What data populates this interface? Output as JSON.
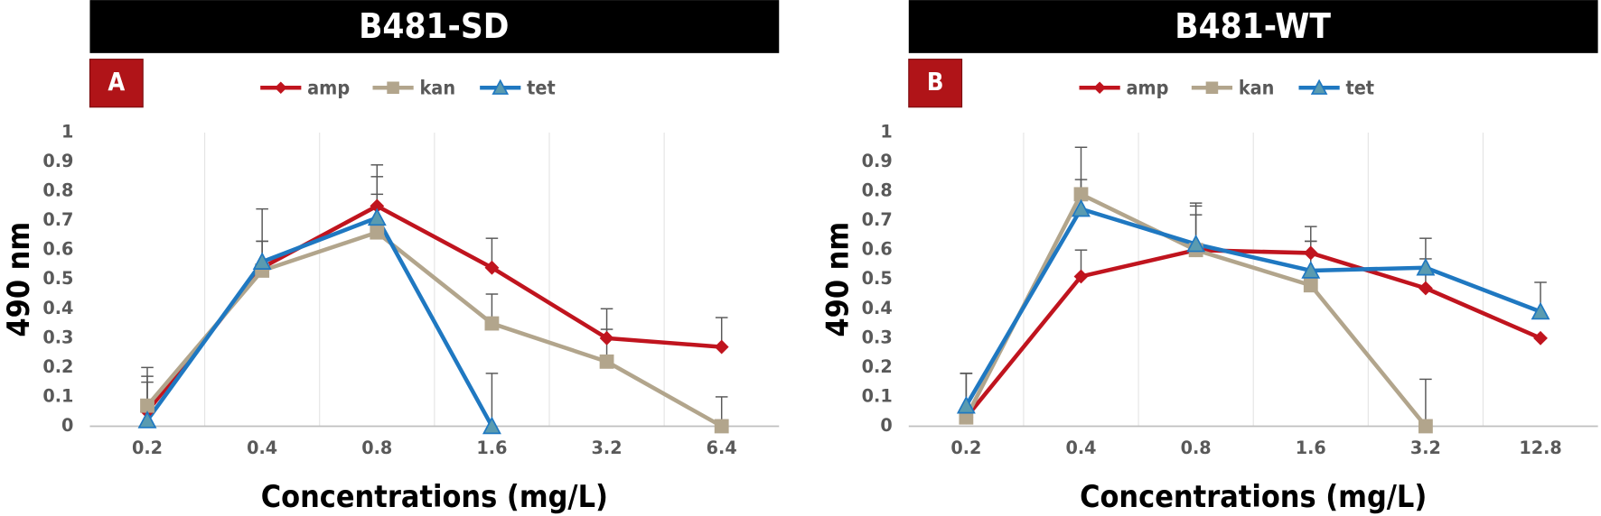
{
  "chart_data": [
    {
      "type": "line",
      "title": "B481-SD",
      "panel": "A",
      "xlabel": "Concentrations (mg/L)",
      "ylabel": "490 nm",
      "categories": [
        "0.2",
        "0.4",
        "0.8",
        "1.6",
        "3.2",
        "6.4"
      ],
      "series": [
        {
          "name": "amp",
          "color": "#c0141e",
          "marker": "diamond",
          "values": [
            0.05,
            0.54,
            0.75,
            0.54,
            0.3,
            0.27
          ],
          "errors": [
            0.12,
            0.09,
            0.14,
            0.1,
            0.1,
            0.1
          ]
        },
        {
          "name": "kan",
          "color": "#b2a58c",
          "marker": "square",
          "values": [
            0.07,
            0.53,
            0.66,
            0.35,
            0.22,
            0
          ],
          "errors": [
            0.13,
            0.1,
            0.13,
            0.1,
            0.11,
            0.1
          ]
        },
        {
          "name": "tet",
          "color": "#1f78c1",
          "marker": "triangle",
          "values": [
            0.02,
            0.56,
            0.71,
            0,
            null,
            null
          ],
          "errors": [
            0.13,
            0.18,
            0.14,
            0.18,
            null,
            null
          ]
        }
      ],
      "ylim": [
        0,
        1
      ],
      "yticks": [
        0,
        0.1,
        0.2,
        0.3,
        0.4,
        0.5,
        0.6,
        0.7,
        0.8,
        0.9,
        1
      ],
      "grid": true
    },
    {
      "type": "line",
      "title": "B481-WT",
      "panel": "B",
      "xlabel": "Concentrations (mg/L)",
      "ylabel": "490 nm",
      "categories": [
        "0.2",
        "0.4",
        "0.8",
        "1.6",
        "3.2",
        "12.8"
      ],
      "series": [
        {
          "name": "amp",
          "color": "#c0141e",
          "marker": "diamond",
          "values": [
            0.03,
            0.51,
            0.6,
            0.59,
            0.47,
            0.3
          ],
          "errors": [
            0.15,
            0.09,
            0.12,
            0.09,
            0.1,
            0
          ]
        },
        {
          "name": "kan",
          "color": "#b2a58c",
          "marker": "square",
          "values": [
            0.03,
            0.79,
            0.6,
            0.48,
            0,
            null
          ],
          "errors": [
            0.15,
            0.16,
            0.15,
            0.15,
            0.16,
            null
          ]
        },
        {
          "name": "tet",
          "color": "#1f78c1",
          "marker": "triangle",
          "values": [
            0.07,
            0.74,
            0.62,
            0.53,
            0.54,
            0.39
          ],
          "errors": [
            0.11,
            0.1,
            0.14,
            0.1,
            0.1,
            0.1
          ]
        }
      ],
      "ylim": [
        0,
        1
      ],
      "yticks": [
        0,
        0.1,
        0.2,
        0.3,
        0.4,
        0.5,
        0.6,
        0.7,
        0.8,
        0.9,
        1
      ],
      "grid": true
    }
  ]
}
